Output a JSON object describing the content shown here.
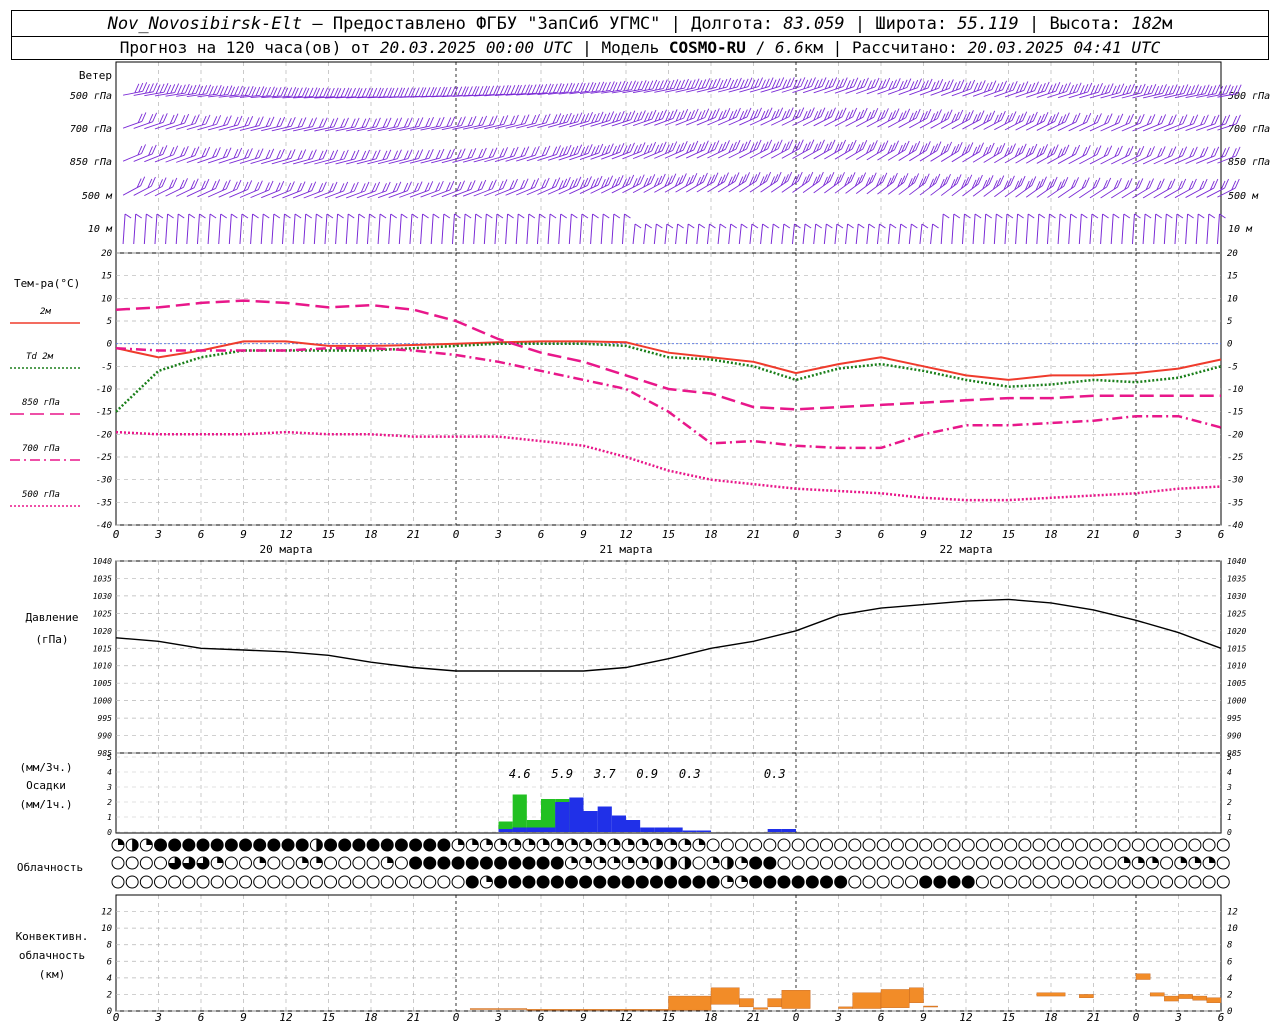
{
  "header": {
    "station": "Nov_Novosibirsk-Elt",
    "dash": "–",
    "provider": "Предоставлено ФГБУ \"ЗапСиб УГМС\"",
    "lon_label": "Долгота:",
    "lon_value": "83.059",
    "lat_label": "Широта:",
    "lat_value": "55.119",
    "alt_label": "Высота:",
    "alt_value": "182",
    "alt_unit": "м",
    "forecast_label": "Прогноз на 120 часа(ов) от",
    "forecast_start": "20.03.2025 00:00 UTC",
    "model_label": "Модель",
    "model_name": "COSMO-RU",
    "model_res": "6.6",
    "model_res_unit": "км",
    "computed_label": "Рассчитано:",
    "computed_value": "20.03.2025 04:41 UTC",
    "separator": "|"
  },
  "chart_data": [
    {
      "type": "wind-barbs",
      "label": "Ветер",
      "levels": [
        "500 гПа",
        "700 гПа",
        "850 гПа",
        "500 м",
        "10   м"
      ],
      "color": "#7b2bd6"
    },
    {
      "type": "line",
      "ylabel": "Тем-ра(°C)",
      "ylim": [
        -40,
        20
      ],
      "yticks": [
        20,
        15,
        10,
        5,
        0,
        -5,
        -10,
        -15,
        -20,
        -25,
        -30,
        -35,
        -40
      ],
      "x_hours": [
        0,
        3,
        6,
        9,
        12,
        15,
        18,
        21,
        24,
        27,
        30,
        33,
        36,
        39,
        42,
        45,
        48,
        51,
        54,
        57,
        60,
        63,
        66,
        69,
        72,
        75,
        78
      ],
      "series": [
        {
          "name": "2м",
          "color": "#ef3b2c",
          "dash": "",
          "values": [
            -1,
            -3,
            -1.5,
            0.5,
            0.5,
            -0.5,
            -0.5,
            -0.3,
            0,
            0.3,
            0.5,
            0.5,
            0.3,
            -2,
            -3,
            -4,
            -6.5,
            -4.5,
            -3,
            -5,
            -7,
            -8,
            -7,
            -7,
            -6.5,
            -5.5,
            -3.5
          ]
        },
        {
          "name": "Td  2м",
          "color": "#1a7f1a",
          "dash": "2,2",
          "values": [
            -15,
            -6,
            -3,
            -1.5,
            -1.5,
            -1.5,
            -1.5,
            -1,
            -0.5,
            0,
            0,
            0,
            -0.5,
            -3,
            -3.5,
            -5,
            -8,
            -5.5,
            -4.5,
            -6,
            -8,
            -9.5,
            -9,
            -8,
            -8.5,
            -7.5,
            -5
          ]
        },
        {
          "name": "850 гПа",
          "color": "#e8178a",
          "dash": "14,6",
          "values": [
            7.5,
            8,
            9,
            9.5,
            9,
            8,
            8.5,
            7.5,
            5,
            1,
            -2,
            -4,
            -7,
            -10,
            -11,
            -14,
            -14.5,
            -14,
            -13.5,
            -13,
            -12.5,
            -12,
            -12,
            -11.5,
            -11.5,
            -11.5,
            -11.5
          ]
        },
        {
          "name": "700 гПа",
          "color": "#e8178a",
          "dash": "10,4,2,4",
          "values": [
            -1,
            -1.5,
            -1.5,
            -1.5,
            -1.5,
            -1,
            -1,
            -1.5,
            -2.5,
            -4,
            -6,
            -8,
            -10,
            -15,
            -22,
            -21.5,
            -22.5,
            -23,
            -23,
            -20,
            -18,
            -18,
            -17.5,
            -17,
            -16,
            -16,
            -18.5
          ]
        },
        {
          "name": "500 гПа",
          "color": "#e8178a",
          "dash": "2,2",
          "values": [
            -19.5,
            -20,
            -20,
            -20,
            -19.5,
            -20,
            -20,
            -20.5,
            -20.5,
            -20.5,
            -21.5,
            -22.5,
            -25,
            -28,
            -30,
            -31,
            -32,
            -32.5,
            -33,
            -34,
            -34.5,
            -34.5,
            -34,
            -33.5,
            -33,
            -32,
            -31.5
          ]
        }
      ],
      "x_tick_labels": [
        "0",
        "3",
        "6",
        "9",
        "12",
        "15",
        "18",
        "21",
        "0",
        "3",
        "6",
        "9",
        "12",
        "15",
        "18",
        "21",
        "0",
        "3",
        "6",
        "9",
        "12",
        "15",
        "18",
        "21",
        "0",
        "3",
        "6"
      ],
      "day_labels": [
        "20 марта",
        "21 марта",
        "22 марта"
      ]
    },
    {
      "type": "line",
      "ylabel": "Давление",
      "ylabel_unit": "(гПа)",
      "ylim": [
        985,
        1040
      ],
      "yticks": [
        1040,
        1035,
        1030,
        1025,
        1020,
        1015,
        1010,
        1005,
        1000,
        995,
        990,
        985
      ],
      "x_hours": [
        0,
        3,
        6,
        9,
        12,
        15,
        18,
        21,
        24,
        27,
        30,
        33,
        36,
        39,
        42,
        45,
        48,
        51,
        54,
        57,
        60,
        63,
        66,
        69,
        72,
        75,
        78
      ],
      "series": [
        {
          "name": "",
          "color": "#000000",
          "values": [
            1018,
            1017,
            1015,
            1014.5,
            1014,
            1013,
            1011,
            1009.5,
            1008.5,
            1008.5,
            1008.5,
            1008.5,
            1009.5,
            1012,
            1015,
            1017,
            1020,
            1024.5,
            1026.5,
            1027.5,
            1028.5,
            1029,
            1028,
            1026,
            1023,
            1019.5,
            1015
          ]
        }
      ]
    },
    {
      "type": "bar",
      "ylabel": "(мм/3ч.)",
      "ylabel2": "Осадки",
      "ylabel3": "(мм/1ч.)",
      "ylim": [
        0,
        5
      ],
      "yticks": [
        5,
        4,
        3,
        2,
        1,
        0
      ],
      "three_hour_totals": [
        {
          "hour": 28.5,
          "value": "4.6"
        },
        {
          "hour": 31.5,
          "value": "5.9"
        },
        {
          "hour": 34.5,
          "value": "3.7"
        },
        {
          "hour": 37.5,
          "value": "0.9"
        },
        {
          "hour": 40.5,
          "value": "0.3"
        },
        {
          "hour": 46.5,
          "value": "0.3"
        }
      ],
      "green_hourly": [
        {
          "hour": 27,
          "value": 0.7
        },
        {
          "hour": 28,
          "value": 2.5
        },
        {
          "hour": 29,
          "value": 0.8
        },
        {
          "hour": 30,
          "value": 2.2
        },
        {
          "hour": 31,
          "value": 2.2
        },
        {
          "hour": 32,
          "value": 1.7
        }
      ],
      "blue_hourly": [
        {
          "hour": 27,
          "value": 0.2
        },
        {
          "hour": 28,
          "value": 0.3
        },
        {
          "hour": 29,
          "value": 0.3
        },
        {
          "hour": 30,
          "value": 0.3
        },
        {
          "hour": 31,
          "value": 2.0
        },
        {
          "hour": 32,
          "value": 2.3
        },
        {
          "hour": 33,
          "value": 1.4
        },
        {
          "hour": 34,
          "value": 1.7
        },
        {
          "hour": 35,
          "value": 1.1
        },
        {
          "hour": 36,
          "value": 0.8
        },
        {
          "hour": 37,
          "value": 0.3
        },
        {
          "hour": 38,
          "value": 0.3
        },
        {
          "hour": 39,
          "value": 0.3
        },
        {
          "hour": 40,
          "value": 0.1
        },
        {
          "hour": 41,
          "value": 0.1
        },
        {
          "hour": 46,
          "value": 0.2
        },
        {
          "hour": 47,
          "value": 0.2
        }
      ],
      "colors": {
        "green": "#22c022",
        "blue": "#2030e8"
      }
    },
    {
      "type": "cloud-symbols",
      "label": "Облачность",
      "rows": [
        "qhqfffffffffffhfffffffffqqqqqqqqqqqqqqqqqqeeeeeeeeeeeeeeeeeeeeeeeeeeeeeeeeeeeeeeeeeeeeeqqhqfhhhfffff",
        "eeeetttqeeqeeqqeeeeqefffffffffffqqqqqqhhheqhqffeeeeeeeeeeeeeeeeeeeeeeeeqqqeqqqeeeeeeeeeqeqqqfffffffffff",
        "eeeeeeeeeeeeeeeeeeeeeeeeefqffffffffffffffffqqfffffffeeeeeffffeeeeeeeeeeeeeeeeeefqeqqeeqqeqqheeqqqeeeeqh"
      ]
    },
    {
      "type": "bar",
      "ylabel": "Конвективн.",
      "ylabel2": "облачность",
      "ylabel3": "(км)",
      "ylim": [
        0,
        14
      ],
      "yticks": [
        12,
        10,
        8,
        6,
        4,
        2,
        0
      ],
      "color": "#f28c28",
      "segments": [
        {
          "from": 25,
          "to": 29,
          "bottom": 0.2,
          "top": 0.3
        },
        {
          "from": 29,
          "to": 39,
          "bottom": 0.1,
          "top": 0.2
        },
        {
          "from": 39,
          "to": 42,
          "bottom": 0.1,
          "top": 1.8
        },
        {
          "from": 42,
          "to": 44,
          "bottom": 0.8,
          "top": 2.8
        },
        {
          "from": 44,
          "to": 45,
          "bottom": 0.5,
          "top": 1.5
        },
        {
          "from": 45,
          "to": 46,
          "bottom": 0.2,
          "top": 0.4
        },
        {
          "from": 46,
          "to": 47,
          "bottom": 0.5,
          "top": 1.5
        },
        {
          "from": 47,
          "to": 49,
          "bottom": 0.3,
          "top": 2.5
        },
        {
          "from": 51,
          "to": 52,
          "bottom": 0.3,
          "top": 0.5
        },
        {
          "from": 52,
          "to": 54,
          "bottom": 0.3,
          "top": 2.2
        },
        {
          "from": 54,
          "to": 56,
          "bottom": 0.4,
          "top": 2.6
        },
        {
          "from": 56,
          "to": 57,
          "bottom": 1,
          "top": 2.8
        },
        {
          "from": 57,
          "to": 58,
          "bottom": 0.5,
          "top": 0.6
        },
        {
          "from": 65,
          "to": 67,
          "bottom": 1.8,
          "top": 2.2
        },
        {
          "from": 68,
          "to": 69,
          "bottom": 1.6,
          "top": 2.0
        },
        {
          "from": 72,
          "to": 73,
          "bottom": 3.8,
          "top": 4.5
        },
        {
          "from": 73,
          "to": 74,
          "bottom": 1.8,
          "top": 2.2
        },
        {
          "from": 74,
          "to": 75,
          "bottom": 1.2,
          "top": 1.8
        },
        {
          "from": 75,
          "to": 76,
          "bottom": 1.5,
          "top": 2.0
        },
        {
          "from": 76,
          "to": 77,
          "bottom": 1.3,
          "top": 1.8
        },
        {
          "from": 77,
          "to": 78,
          "bottom": 1.0,
          "top": 1.6
        }
      ]
    }
  ]
}
